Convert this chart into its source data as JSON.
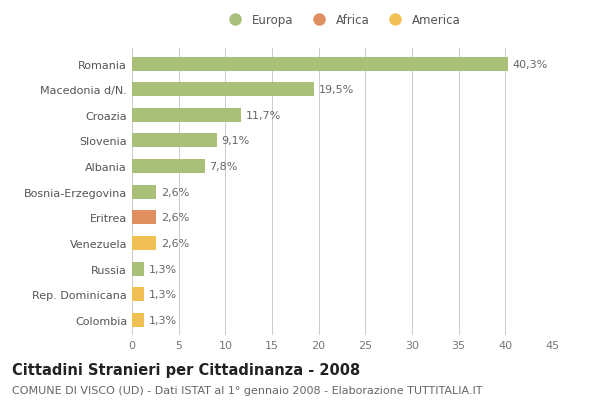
{
  "categories": [
    "Romania",
    "Macedonia d/N.",
    "Croazia",
    "Slovenia",
    "Albania",
    "Bosnia-Erzegovina",
    "Eritrea",
    "Venezuela",
    "Russia",
    "Rep. Dominicana",
    "Colombia"
  ],
  "values": [
    40.3,
    19.5,
    11.7,
    9.1,
    7.8,
    2.6,
    2.6,
    2.6,
    1.3,
    1.3,
    1.3
  ],
  "labels": [
    "40,3%",
    "19,5%",
    "11,7%",
    "9,1%",
    "7,8%",
    "2,6%",
    "2,6%",
    "2,6%",
    "1,3%",
    "1,3%",
    "1,3%"
  ],
  "colors": [
    "#a8c07a",
    "#a8c07a",
    "#a8c07a",
    "#a8c07a",
    "#a8c07a",
    "#a8c07a",
    "#e09060",
    "#f0c055",
    "#a8c07a",
    "#f0c055",
    "#f0c055"
  ],
  "legend_items": [
    {
      "label": "Europa",
      "color": "#a8c07a"
    },
    {
      "label": "Africa",
      "color": "#e09060"
    },
    {
      "label": "America",
      "color": "#f0c055"
    }
  ],
  "title": "Cittadini Stranieri per Cittadinanza - 2008",
  "subtitle": "COMUNE DI VISCO (UD) - Dati ISTAT al 1° gennaio 2008 - Elaborazione TUTTITALIA.IT",
  "xlim": [
    0,
    45
  ],
  "xticks": [
    0,
    5,
    10,
    15,
    20,
    25,
    30,
    35,
    40,
    45
  ],
  "background_color": "#ffffff",
  "grid_color": "#cccccc",
  "bar_height": 0.55,
  "title_fontsize": 10.5,
  "subtitle_fontsize": 8.0,
  "label_fontsize": 8.0,
  "tick_fontsize": 8.0,
  "legend_fontsize": 8.5
}
